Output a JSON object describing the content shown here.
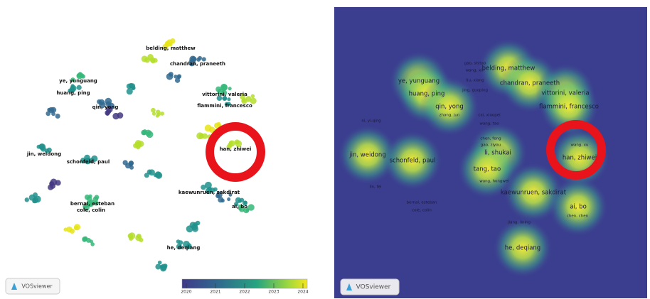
{
  "overlay": {
    "labels": [
      "belding, matthew",
      "chandran, praneeth",
      "ye, yunguang",
      "huang, ping",
      "qin, yong",
      "vittorini, valeria",
      "flammini, francesco",
      "han, zhiwei",
      "jin, weidong",
      "schonfeld, paul",
      "kaewunruen, sakdirat",
      "ai, bo",
      "bernal, esteban",
      "cole, colin",
      "he, deqiang"
    ],
    "colorbar": {
      "lim": [
        2020,
        2024
      ],
      "ticks": [
        2020,
        2021,
        2022,
        2023,
        2024
      ]
    },
    "logo": "VOSviewer"
  },
  "density": {
    "labels": [
      "belding, matthew",
      "gao, shitao",
      "wang, xin",
      "chandran, praneeth",
      "liu, xiang",
      "ye, yunguang",
      "jing, guoping",
      "huang, ping",
      "vittorini, valeria",
      "flammini, francesco",
      "qin, yong",
      "zhang, jun",
      "cai, xiaopei",
      "wang, tao",
      "ni, yi-qing",
      "chen, feng",
      "gao, ziyou",
      "li, shukai",
      "wang, xu",
      "han, zhiwei",
      "jin, weidong",
      "schonfeld, paul",
      "tang, tao",
      "wang, hongwei",
      "lin, fei",
      "kaewunruen, sakdirat",
      "ai, bo",
      "chen, chen",
      "bernal, esteban",
      "cole, colin",
      "jiang, lining",
      "he, deqiang"
    ],
    "logo": "VOSviewer"
  }
}
